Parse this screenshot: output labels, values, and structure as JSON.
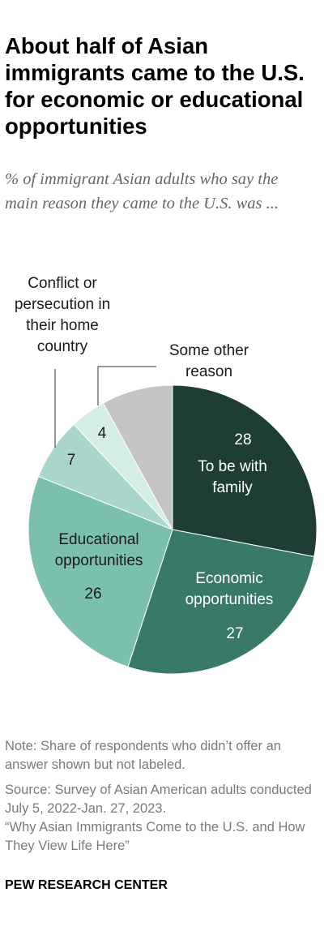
{
  "chart_data": {
    "type": "pie",
    "title": "About half of Asian immigrants came to the U.S. for economic or educational opportunities",
    "subtitle": "% of immigrant Asian adults who say the main reason they came to the U.S. was ...",
    "categories": [
      "To be with family",
      "Economic opportunities",
      "Educational opportunities",
      "Conflict or persecution in their home country",
      "Some other reason",
      null
    ],
    "values": [
      28,
      27,
      26,
      7,
      4,
      8
    ],
    "colors": [
      "#1e3d35",
      "#387969",
      "#7bbfae",
      "#a9d6ca",
      "#d5ede7",
      "#c4c4c4"
    ],
    "note": "Note: Share of respondents who didn’t offer an answer shown but not labeled.",
    "source": "Source: Survey of Asian American adults conducted July 5, 2022-Jan. 27, 2023.",
    "report": "“Why Asian Immigrants Come to the U.S. and How They View Life Here”",
    "credit": "PEW RESEARCH CENTER"
  }
}
